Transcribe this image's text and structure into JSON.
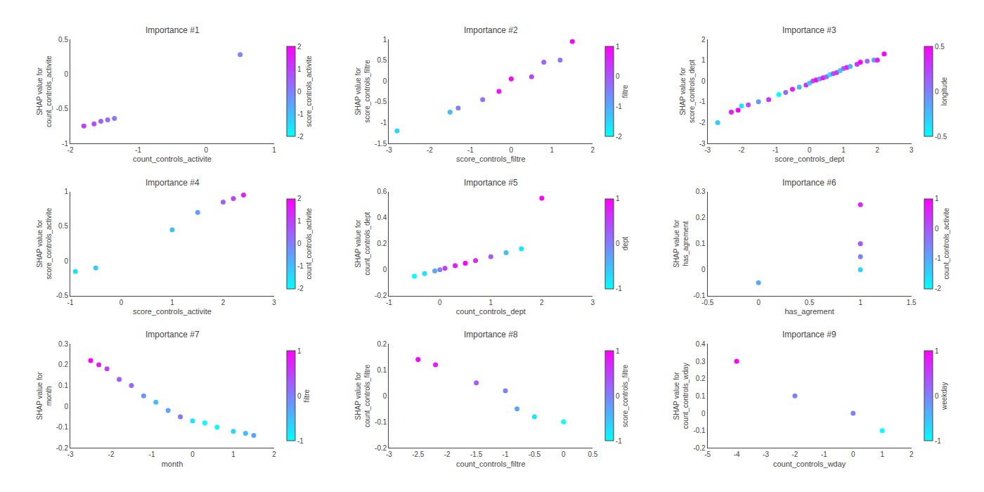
{
  "chart_data": [
    {
      "type": "scatter",
      "title": "Importance #1",
      "x_label": "count_controls_activite",
      "y_label": "SHAP value for\ncount_controls_activite",
      "x": [
        -1.8,
        -1.65,
        -1.55,
        -1.45,
        -1.35,
        0.5
      ],
      "y": [
        -0.75,
        -0.72,
        -0.68,
        -0.66,
        -0.64,
        0.28
      ],
      "color_values": [
        1.0,
        0.8,
        0.5,
        0.3,
        0.1,
        -0.1
      ],
      "color": "cool",
      "color_label": "score_controls_activite",
      "color_range": [
        -2,
        2
      ],
      "color_ticks": [
        -2,
        -1,
        0,
        1,
        2
      ],
      "xlim": [
        -2,
        1
      ],
      "xticks": [
        -2,
        -1,
        0,
        1
      ],
      "ylim": [
        -1,
        0.5
      ],
      "yticks": [
        -1,
        -0.5,
        0,
        0.5
      ],
      "grid": false
    },
    {
      "type": "scatter",
      "title": "Importance #2",
      "x_label": "score_controls_filtre",
      "y_label": "SHAP value for\nscore_controls_filtre",
      "x": [
        -2.8,
        -1.5,
        -1.3,
        -0.7,
        -0.3,
        0.0,
        0.5,
        0.8,
        1.2,
        1.5
      ],
      "y": [
        -1.2,
        -0.75,
        -0.65,
        -0.45,
        -0.25,
        0.05,
        0.1,
        0.45,
        0.5,
        0.95
      ],
      "color_values": [
        -1.5,
        -1.2,
        -0.5,
        -0.3,
        0.8,
        0.9,
        0.2,
        -0.2,
        -0.4,
        1.0
      ],
      "color": "cool",
      "color_label": "filtre",
      "color_range": [
        -2,
        1
      ],
      "color_ticks": [
        -2,
        -1,
        0,
        1
      ],
      "xlim": [
        -3,
        2
      ],
      "xticks": [
        -3,
        -2,
        -1,
        0,
        1,
        2
      ],
      "ylim": [
        -1.5,
        1
      ],
      "yticks": [
        -1.5,
        -1,
        -0.5,
        0,
        0.5,
        1
      ],
      "grid": false
    },
    {
      "type": "scatter",
      "title": "Importance #3",
      "x_label": "score_controls_dept",
      "y_label": "SHAP value for\nscore_controls_dept",
      "x": [
        -2.7,
        -2.3,
        -2.1,
        -2.0,
        -1.8,
        -1.5,
        -1.2,
        -0.9,
        -0.7,
        -0.5,
        -0.3,
        -0.1,
        0.0,
        0.1,
        0.2,
        0.3,
        0.4,
        0.5,
        0.6,
        0.7,
        0.8,
        0.9,
        1.0,
        1.1,
        1.2,
        1.4,
        1.5,
        1.7,
        1.9,
        2.0,
        2.2
      ],
      "y": [
        -2.0,
        -1.5,
        -1.4,
        -1.2,
        -1.15,
        -1.0,
        -0.9,
        -0.65,
        -0.55,
        -0.4,
        -0.3,
        -0.2,
        -0.1,
        0.0,
        0.05,
        0.1,
        0.15,
        0.2,
        0.3,
        0.35,
        0.4,
        0.5,
        0.6,
        0.65,
        0.7,
        0.8,
        0.9,
        0.95,
        1.0,
        1.0,
        1.3
      ],
      "color_values": [
        -0.3,
        0.4,
        0.5,
        -0.4,
        0.2,
        -0.1,
        0.3,
        -0.5,
        0.1,
        0.4,
        -0.2,
        0.3,
        -0.3,
        0.2,
        0.5,
        -0.1,
        0.4,
        0.1,
        -0.4,
        0.2,
        0.3,
        -0.3,
        0.1,
        0.4,
        -0.2,
        0.3,
        0.5,
        0.1,
        -0.1,
        0.4,
        0.5
      ],
      "color": "cool",
      "color_label": "longitude",
      "color_range": [
        -0.5,
        0.5
      ],
      "color_ticks": [
        -0.5,
        0,
        0.5
      ],
      "xlim": [
        -3,
        3
      ],
      "xticks": [
        -3,
        -2,
        -1,
        0,
        1,
        2,
        3
      ],
      "ylim": [
        -3,
        2
      ],
      "yticks": [
        -3,
        -2,
        -1,
        0,
        1,
        2
      ],
      "grid": false
    },
    {
      "type": "scatter",
      "title": "Importance #4",
      "x_label": "score_controls_activite",
      "y_label": "SHAP value for\nscore_controls_activite",
      "x": [
        -0.9,
        -0.5,
        1.0,
        1.5,
        2.0,
        2.2,
        2.4
      ],
      "y": [
        -0.15,
        -0.1,
        0.45,
        0.7,
        0.85,
        0.9,
        0.95
      ],
      "color_values": [
        -1.5,
        -1.2,
        -1.0,
        -0.5,
        0.5,
        1.0,
        1.5
      ],
      "color": "cool",
      "color_label": "count_controls_activite",
      "color_range": [
        -2,
        2
      ],
      "color_ticks": [
        -2,
        -1,
        0,
        1,
        2
      ],
      "xlim": [
        -1,
        3
      ],
      "xticks": [
        -1,
        0,
        1,
        2,
        3
      ],
      "ylim": [
        -0.5,
        1
      ],
      "yticks": [
        -0.5,
        0,
        0.5,
        1
      ],
      "grid": false
    },
    {
      "type": "scatter",
      "title": "Importance #5",
      "x_label": "count_controls_dept",
      "y_label": "SHAP value for\ncount_controls_dept",
      "x": [
        -0.5,
        -0.3,
        -0.1,
        0.0,
        0.1,
        0.3,
        0.5,
        0.7,
        1.0,
        1.3,
        1.6,
        2.0
      ],
      "y": [
        -0.05,
        -0.03,
        -0.01,
        0.0,
        0.01,
        0.03,
        0.05,
        0.07,
        0.1,
        0.13,
        0.16,
        0.55
      ],
      "color_values": [
        -1.0,
        -0.8,
        -0.3,
        0.0,
        0.5,
        0.8,
        1.0,
        0.7,
        0.3,
        -0.5,
        -0.8,
        1.0
      ],
      "color": "cool",
      "color_label": "dept",
      "color_range": [
        -1,
        1
      ],
      "color_ticks": [
        -1,
        0,
        1
      ],
      "xlim": [
        -1,
        3
      ],
      "xticks": [
        -1,
        0,
        1,
        2,
        3
      ],
      "ylim": [
        -0.2,
        0.6
      ],
      "yticks": [
        -0.2,
        0,
        0.2,
        0.4,
        0.6
      ],
      "grid": false
    },
    {
      "type": "scatter",
      "title": "Importance #6",
      "x_label": "has_agrement",
      "y_label": "SHAP value for\nhas_agrement",
      "x": [
        0.0,
        1.0,
        1.0,
        1.0,
        1.0
      ],
      "y": [
        -0.05,
        0.0,
        0.05,
        0.1,
        0.25
      ],
      "color_values": [
        -1.0,
        -1.5,
        -0.5,
        0.0,
        0.5
      ],
      "color": "cool",
      "color_label": "count_controls_activite",
      "color_range": [
        -2,
        1
      ],
      "color_ticks": [
        -2,
        -1,
        0,
        1
      ],
      "xlim": [
        -0.5,
        1.5
      ],
      "xticks": [
        -0.5,
        0,
        0.5,
        1,
        1.5
      ],
      "ylim": [
        -0.1,
        0.3
      ],
      "yticks": [
        -0.1,
        0,
        0.1,
        0.2,
        0.3
      ],
      "grid": false
    },
    {
      "type": "scatter",
      "title": "Importance #7",
      "x_label": "month",
      "y_label": "SHAP value for\nmonth",
      "x": [
        -2.5,
        -2.3,
        -2.1,
        -1.8,
        -1.5,
        -1.2,
        -0.9,
        -0.6,
        -0.3,
        0.0,
        0.3,
        0.6,
        1.0,
        1.3,
        1.5
      ],
      "y": [
        0.22,
        0.2,
        0.18,
        0.13,
        0.1,
        0.05,
        0.02,
        -0.02,
        -0.05,
        -0.07,
        -0.08,
        -0.1,
        -0.12,
        -0.13,
        -0.14
      ],
      "color_values": [
        1.0,
        0.8,
        0.5,
        0.3,
        0.2,
        -0.2,
        -0.5,
        -0.3,
        0.1,
        -0.8,
        -1.0,
        -1.0,
        -0.7,
        -0.5,
        -0.3
      ],
      "color": "cool",
      "color_label": "filtre",
      "color_range": [
        -1,
        1
      ],
      "color_ticks": [
        -1,
        0,
        1
      ],
      "xlim": [
        -3,
        2
      ],
      "xticks": [
        -3,
        -2,
        -1,
        0,
        1,
        2
      ],
      "ylim": [
        -0.2,
        0.3
      ],
      "yticks": [
        -0.2,
        -0.1,
        0,
        0.1,
        0.2,
        0.3
      ],
      "grid": false
    },
    {
      "type": "scatter",
      "title": "Importance #8",
      "x_label": "count_controls_filtre",
      "y_label": "SHAP value for\ncount_controls_filtre",
      "x": [
        -2.5,
        -2.2,
        -1.5,
        -0.8,
        -0.5,
        0.0,
        -1.0
      ],
      "y": [
        0.14,
        0.12,
        0.05,
        -0.05,
        -0.08,
        -0.1,
        0.02
      ],
      "color_values": [
        1.0,
        0.8,
        0.3,
        -0.3,
        -0.8,
        -1.0,
        0.0
      ],
      "color": "cool",
      "color_label": "score_controls_filtre",
      "color_range": [
        -1,
        1
      ],
      "color_ticks": [
        -1,
        0,
        1
      ],
      "xlim": [
        -3,
        0.5
      ],
      "xticks": [
        -3,
        -2.5,
        -2,
        -1.5,
        -1,
        -0.5,
        0,
        0.5
      ],
      "ylim": [
        -0.2,
        0.2
      ],
      "yticks": [
        -0.2,
        -0.1,
        0,
        0.1,
        0.2
      ],
      "grid": false
    },
    {
      "type": "scatter",
      "title": "Importance #9",
      "x_label": "count_controls_wday",
      "y_label": "SHAP value for\ncount_controls_wday",
      "x": [
        -4.0,
        -2.0,
        0.0,
        1.0
      ],
      "y": [
        0.3,
        0.1,
        0.0,
        -0.1
      ],
      "color_values": [
        1.0,
        0.0,
        0.0,
        -1.0
      ],
      "color": "cool",
      "color_label": "weekday",
      "color_range": [
        -1,
        1
      ],
      "color_ticks": [
        -1,
        0,
        1
      ],
      "xlim": [
        -5,
        2
      ],
      "xticks": [
        -5,
        -4,
        -3,
        -2,
        -1,
        0,
        1,
        2
      ],
      "ylim": [
        -0.2,
        0.4
      ],
      "yticks": [
        -0.2,
        -0.1,
        0,
        0.1,
        0.2,
        0.3,
        0.4
      ],
      "grid": false
    }
  ]
}
